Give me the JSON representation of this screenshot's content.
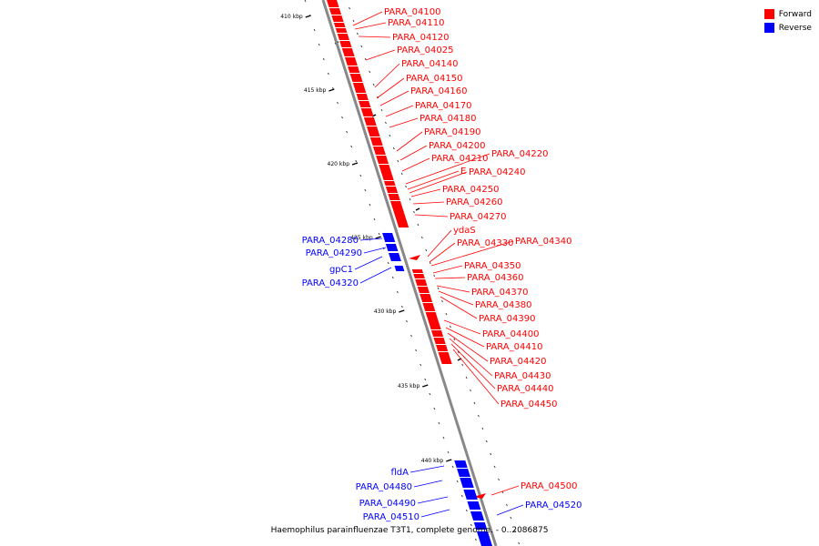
{
  "caption": "Haemophilus parainfluenzae T3T1, complete genome. - 0..2086875",
  "legend": [
    {
      "label": "Forward",
      "color": "#ff0000"
    },
    {
      "label": "Reverse",
      "color": "#0000ff"
    }
  ],
  "colors": {
    "forward": "#ff0000",
    "reverse": "#0000ff",
    "axis": "#888888"
  },
  "ticks": [
    "410 kbp",
    "415 kbp",
    "420 kbp",
    "425 kbp",
    "430 kbp",
    "435 kbp",
    "440 kbp"
  ],
  "forward_genes": [
    "PARA_04100",
    "PARA_04110",
    "PARA_04120",
    "PARA_04025",
    "PARA_04140",
    "PARA_04150",
    "PARA_04160",
    "PARA_04170",
    "PARA_04180",
    "PARA_04190",
    "PARA_04200",
    "PARA_04210",
    "PARA_04220",
    "E",
    "PARA_04240",
    "PARA_04250",
    "PARA_04260",
    "PARA_04270",
    "ydaS",
    "PARA_04330",
    "PARA_04340",
    "PARA_04350",
    "PARA_04360",
    "PARA_04370",
    "PARA_04380",
    "PARA_04390",
    "PARA_04400",
    "PARA_04410",
    "PARA_04420",
    "PARA_04430",
    "PARA_04440",
    "PARA_04450",
    "PARA_04500"
  ],
  "reverse_genes": [
    "PARA_04280",
    "PARA_04290",
    "gpC1",
    "PARA_04320",
    "fldA",
    "PARA_04480",
    "PARA_04490",
    "PARA_04510",
    "PARA_04520"
  ]
}
